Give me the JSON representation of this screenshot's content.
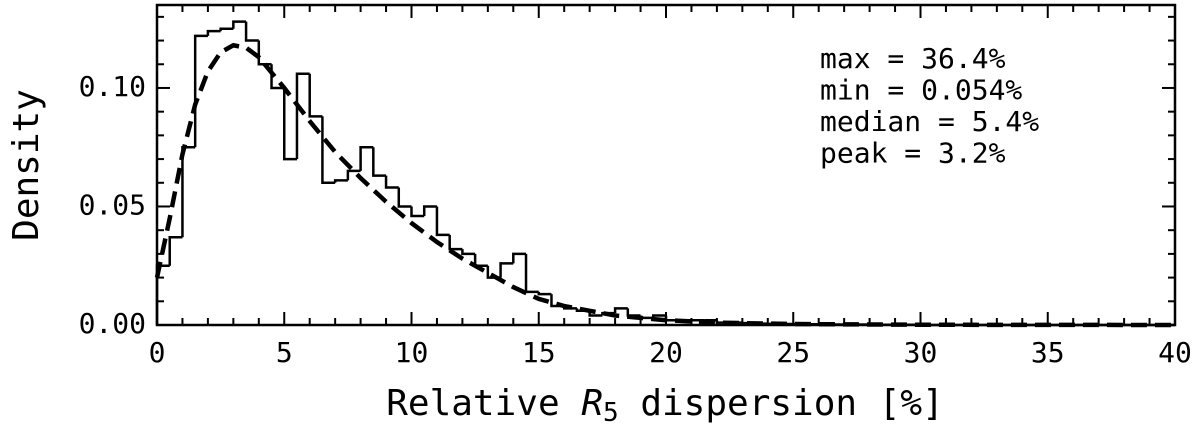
{
  "chart_data": {
    "type": "histogram",
    "x_label": {
      "pre": "Relative ",
      "var": "R",
      "sub": "5",
      "post": " dispersion [%]"
    },
    "y_label": "Density",
    "annotations": [
      "max = 36.4%",
      "min = 0.054%",
      "median = 5.4%",
      "peak = 3.2%"
    ],
    "bins": [
      0,
      0.5,
      1,
      1.5,
      2,
      2.5,
      3,
      3.5,
      4,
      4.5,
      5,
      5.5,
      6,
      6.5,
      7,
      7.5,
      8,
      8.5,
      9,
      9.5,
      10,
      10.5,
      11,
      11.5,
      12,
      12.5,
      13,
      13.5,
      14,
      14.5,
      15,
      15.5,
      16,
      16.5,
      17,
      17.5,
      18,
      18.5,
      19,
      19.5,
      20,
      20.5,
      21,
      21.5,
      22,
      22.5,
      23,
      23.5,
      24,
      24.5,
      25,
      25.5,
      26,
      26.5,
      27,
      27.5,
      28,
      28.5,
      29,
      29.5,
      30,
      30.5,
      31,
      31.5,
      32,
      32.5,
      33,
      33.5,
      34,
      34.5,
      35,
      35.5,
      36,
      36.5,
      37,
      37.5,
      38,
      38.5,
      39,
      39.5,
      40
    ],
    "values": [
      0.025,
      0.037,
      0.075,
      0.122,
      0.124,
      0.125,
      0.128,
      0.12,
      0.11,
      0.1,
      0.07,
      0.106,
      0.088,
      0.06,
      0.061,
      0.065,
      0.075,
      0.063,
      0.058,
      0.05,
      0.046,
      0.05,
      0.038,
      0.032,
      0.03,
      0.025,
      0.02,
      0.026,
      0.03,
      0.014,
      0.013,
      0.008,
      0.007,
      0.006,
      0.004,
      0.005,
      0.007,
      0.004,
      0.003,
      0.004,
      0.002,
      0.002,
      0.002,
      0.002,
      0.001,
      0.001,
      0.0008,
      0.0006,
      0.0005,
      0.0004,
      0.0004,
      0.0003,
      0.0003,
      0.0002,
      0.0002,
      0.0002,
      0.0001,
      0.0001,
      0.0001,
      0.0001,
      0,
      0,
      0,
      0,
      0,
      0,
      0,
      0,
      0,
      0,
      0,
      0,
      0,
      0,
      0,
      0,
      0,
      0,
      0,
      0
    ],
    "color": "#000000",
    "fit": {
      "x": [
        0,
        0.5,
        1,
        1.5,
        2,
        2.5,
        3,
        3.5,
        4,
        5,
        6,
        7,
        8,
        9,
        10,
        11,
        12,
        13,
        14,
        15,
        16,
        17,
        18,
        19,
        20,
        22,
        25,
        30,
        40
      ],
      "values": [
        0.02,
        0.045,
        0.072,
        0.093,
        0.107,
        0.115,
        0.118,
        0.117,
        0.113,
        0.1,
        0.086,
        0.073,
        0.062,
        0.052,
        0.043,
        0.035,
        0.028,
        0.022,
        0.016,
        0.011,
        0.008,
        0.006,
        0.004,
        0.003,
        0.002,
        0.001,
        0.0004,
        0.0001,
        0
      ],
      "color": "#000000"
    },
    "xlim": [
      0,
      40
    ],
    "ylim": [
      0,
      0.135
    ],
    "xticks": [
      0,
      5,
      10,
      15,
      20,
      25,
      30,
      35,
      40
    ],
    "yticks": [
      {
        "value": 0,
        "label": "0.00"
      },
      {
        "value": 0.05,
        "label": "0.05"
      },
      {
        "value": 0.1,
        "label": "0.10"
      }
    ],
    "xminorticks": [
      1,
      2,
      3,
      4,
      6,
      7,
      8,
      9,
      11,
      12,
      13,
      14,
      16,
      17,
      18,
      19,
      21,
      22,
      23,
      24,
      26,
      27,
      28,
      29,
      31,
      32,
      33,
      34,
      36,
      37,
      38,
      39
    ],
    "yminorticks": [
      0.01,
      0.02,
      0.03,
      0.04,
      0.06,
      0.07,
      0.08,
      0.09,
      0.11,
      0.12,
      0.13
    ]
  }
}
